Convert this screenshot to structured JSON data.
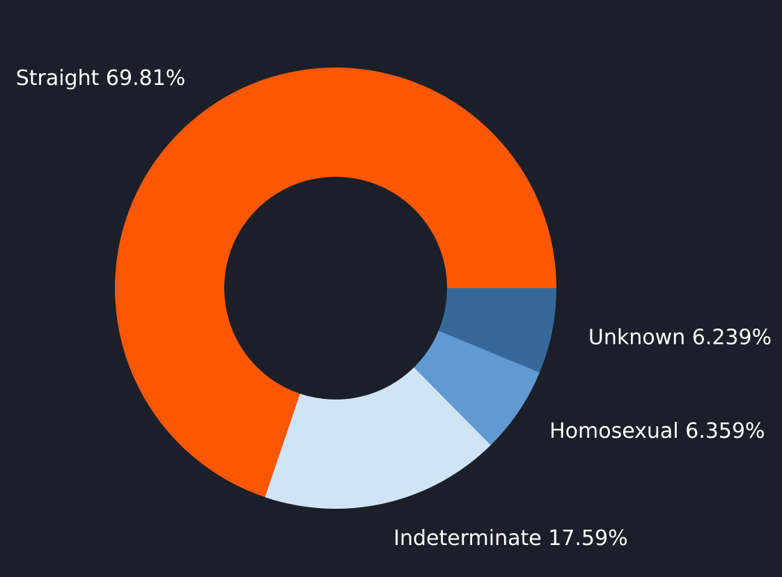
{
  "background_color": "#1a1f29",
  "chart_data": {
    "type": "pie",
    "style": "donut",
    "title": "",
    "slices": [
      {
        "label": "Unknown",
        "value": 6.239,
        "display": "Unknown  6.239%",
        "color": "#36699a"
      },
      {
        "label": "Homosexual",
        "value": 6.359,
        "display": "Homosexual  6.359%",
        "color": "#619ad1"
      },
      {
        "label": "Indeterminate",
        "value": 17.59,
        "display": "Indeterminate  17.59%",
        "color": "#d0e3f7"
      },
      {
        "label": "Straight",
        "value": 69.81,
        "display": "Straight  69.81%",
        "color": "#ff5700"
      }
    ],
    "start_angle_deg": 0,
    "direction": "counterclockwise-from-east-going-clockwise-on-screen"
  }
}
